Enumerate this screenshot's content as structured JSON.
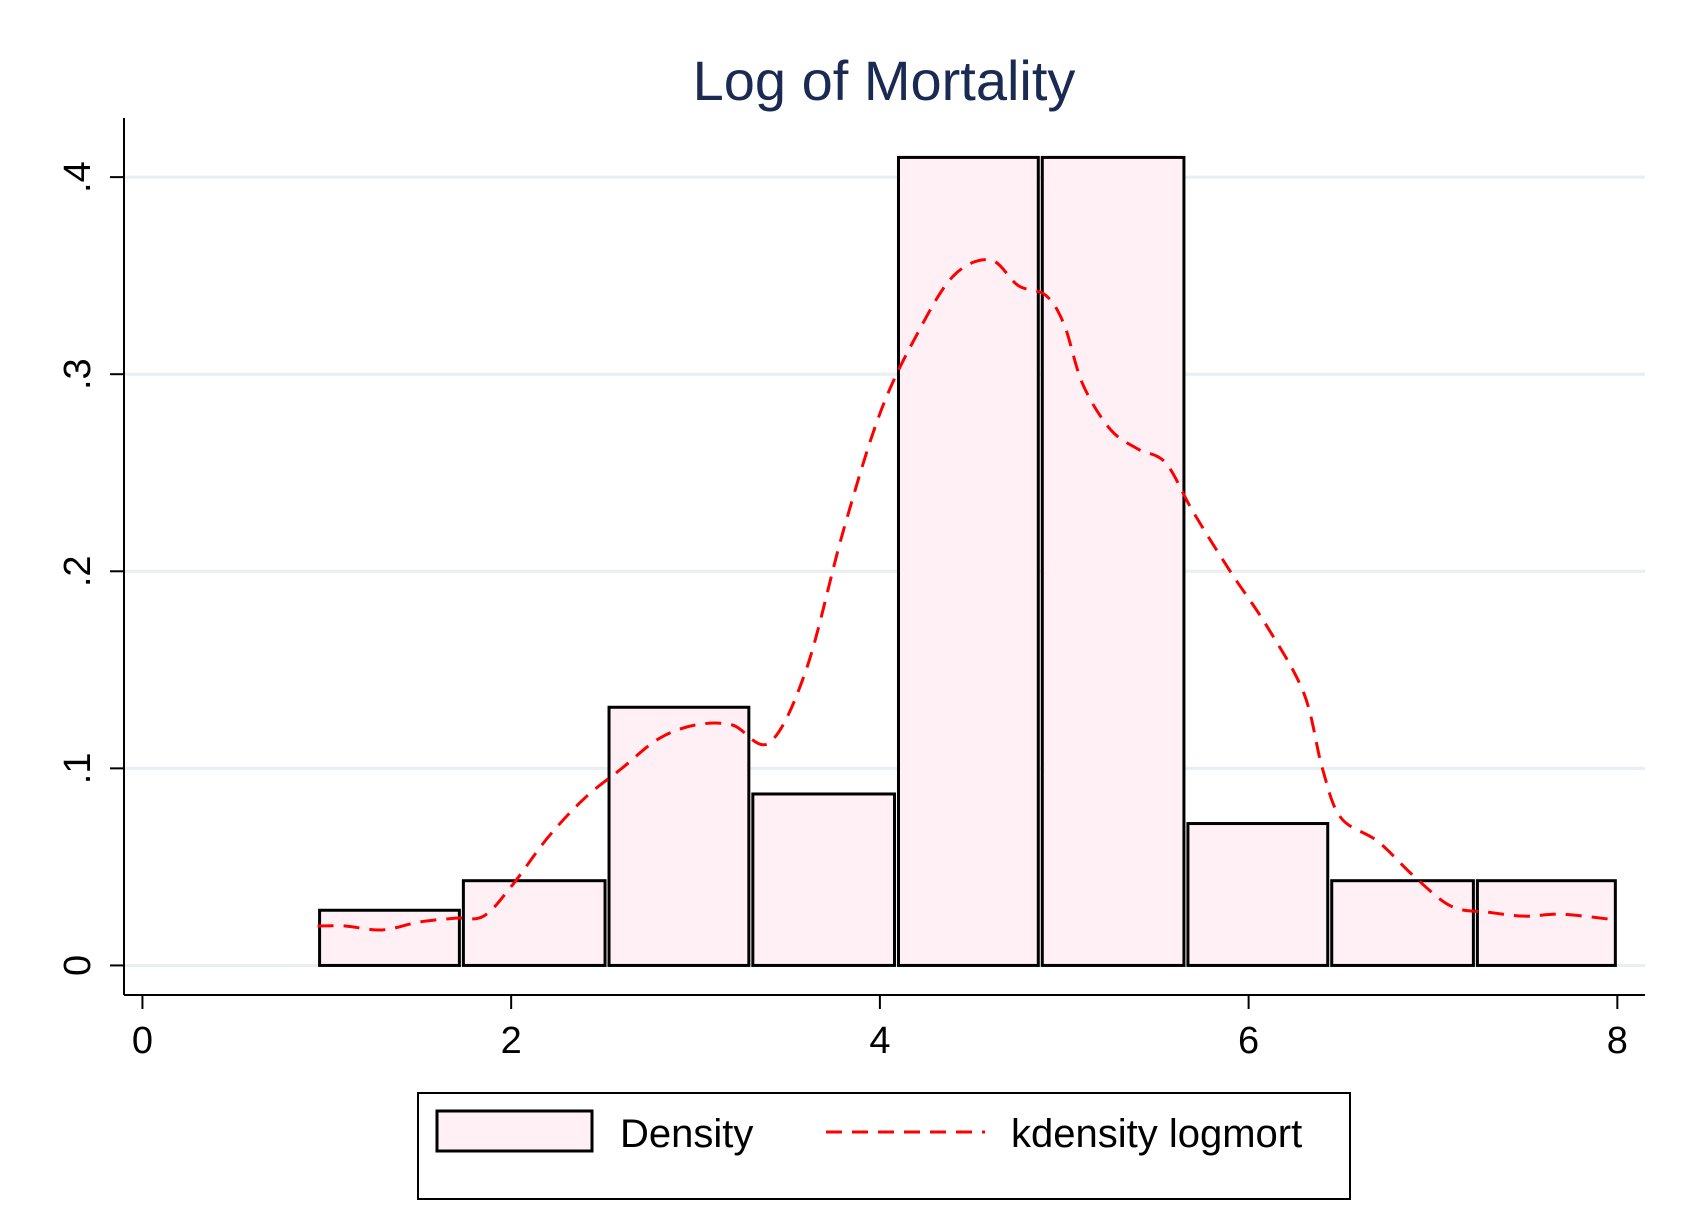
{
  "chart_data": {
    "type": "bar",
    "title": "Log of Mortality",
    "xlabel": "",
    "ylabel": "",
    "xlim": [
      -0.1,
      8.15
    ],
    "ylim": [
      -0.015,
      0.43
    ],
    "xticks": [
      {
        "value": 0,
        "label": "0"
      },
      {
        "value": 2,
        "label": "2"
      },
      {
        "value": 4,
        "label": "4"
      },
      {
        "value": 6,
        "label": "6"
      },
      {
        "value": 8,
        "label": "8"
      }
    ],
    "yticks": [
      {
        "value": 0,
        "label": "0"
      },
      {
        "value": 0.1,
        "label": ".1"
      },
      {
        "value": 0.2,
        "label": ".2"
      },
      {
        "value": 0.3,
        "label": ".3"
      },
      {
        "value": 0.4,
        "label": ".4"
      }
    ],
    "grid": "horizontal",
    "legend_position": "bottom",
    "series": [
      {
        "name": "Density",
        "type": "histogram",
        "fill": "#fff0f5",
        "edge": "#000000",
        "bins": [
          {
            "start": 0.95,
            "end": 1.73,
            "value": 0.028
          },
          {
            "start": 1.73,
            "end": 2.52,
            "value": 0.043
          },
          {
            "start": 2.52,
            "end": 3.3,
            "value": 0.131
          },
          {
            "start": 3.3,
            "end": 4.09,
            "value": 0.087
          },
          {
            "start": 4.09,
            "end": 4.87,
            "value": 0.41
          },
          {
            "start": 4.87,
            "end": 5.66,
            "value": 0.41
          },
          {
            "start": 5.66,
            "end": 6.44,
            "value": 0.072
          },
          {
            "start": 6.44,
            "end": 7.23,
            "value": 0.043
          },
          {
            "start": 7.23,
            "end": 8.0,
            "value": 0.043
          }
        ]
      },
      {
        "name": "kdensity logmort",
        "type": "line",
        "color": "#ff0000",
        "dash": "dashed",
        "points": [
          [
            0.95,
            0.02
          ],
          [
            1.1,
            0.02
          ],
          [
            1.3,
            0.018
          ],
          [
            1.5,
            0.022
          ],
          [
            1.7,
            0.024
          ],
          [
            1.85,
            0.025
          ],
          [
            2.0,
            0.04
          ],
          [
            2.2,
            0.065
          ],
          [
            2.4,
            0.085
          ],
          [
            2.6,
            0.1
          ],
          [
            2.8,
            0.115
          ],
          [
            3.0,
            0.122
          ],
          [
            3.2,
            0.122
          ],
          [
            3.4,
            0.113
          ],
          [
            3.6,
            0.15
          ],
          [
            3.8,
            0.22
          ],
          [
            4.0,
            0.28
          ],
          [
            4.2,
            0.32
          ],
          [
            4.4,
            0.35
          ],
          [
            4.6,
            0.358
          ],
          [
            4.75,
            0.345
          ],
          [
            4.9,
            0.34
          ],
          [
            5.0,
            0.325
          ],
          [
            5.1,
            0.295
          ],
          [
            5.25,
            0.272
          ],
          [
            5.4,
            0.262
          ],
          [
            5.55,
            0.255
          ],
          [
            5.7,
            0.23
          ],
          [
            5.9,
            0.2
          ],
          [
            6.1,
            0.172
          ],
          [
            6.3,
            0.138
          ],
          [
            6.4,
            0.1
          ],
          [
            6.5,
            0.075
          ],
          [
            6.7,
            0.063
          ],
          [
            6.9,
            0.045
          ],
          [
            7.1,
            0.03
          ],
          [
            7.3,
            0.027
          ],
          [
            7.5,
            0.025
          ],
          [
            7.7,
            0.026
          ],
          [
            8.0,
            0.023
          ]
        ]
      }
    ]
  }
}
